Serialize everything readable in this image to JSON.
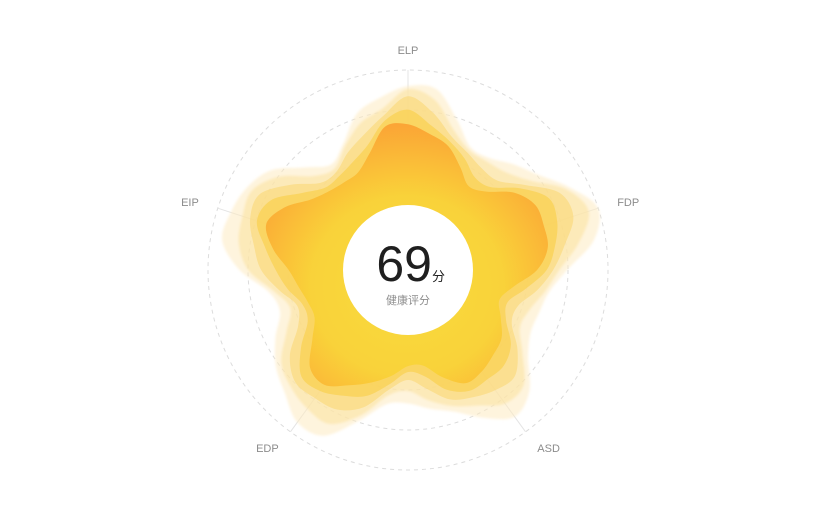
{
  "chart_data": {
    "type": "radar",
    "title": "",
    "indicators": [
      "ELP",
      "FDP",
      "ASD",
      "EDP",
      "EIP"
    ],
    "range": [
      0,
      100
    ],
    "grid": true,
    "grid_style": "dashed-circle",
    "series": [
      {
        "values": [
          92,
          97,
          88,
          94,
          96
        ]
      },
      {
        "values": [
          88,
          92,
          82,
          88,
          90
        ]
      },
      {
        "values": [
          84,
          86,
          76,
          82,
          84
        ]
      },
      {
        "values": [
          79,
          80,
          70,
          76,
          78
        ]
      },
      {
        "values": [
          74,
          74,
          64,
          70,
          72
        ]
      }
    ],
    "colors": {
      "outer": "#fde8b0",
      "mid": "#fbd357",
      "inner": "#f8dc39",
      "peak": "#fba032",
      "grid": "#dcdcdc",
      "axis": "#e4e4e4"
    }
  },
  "score": {
    "value": "69",
    "unit": "分",
    "caption": "健康评分"
  }
}
